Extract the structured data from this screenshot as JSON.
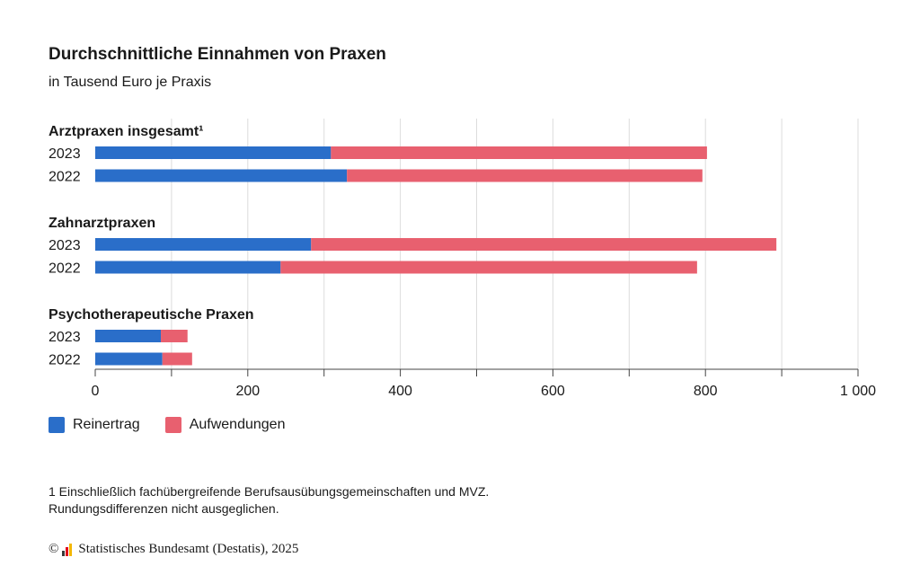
{
  "title": "Durchschnittliche Einnahmen von Praxen",
  "subtitle": "in Tausend Euro je Praxis",
  "colors": {
    "reinertrag": "#2a6ec9",
    "aufwendungen": "#e8606f",
    "grid": "#dcdcdc",
    "axis": "#444444"
  },
  "legend": [
    {
      "label": "Reinertrag",
      "color": "#2a6ec9"
    },
    {
      "label": "Aufwendungen",
      "color": "#e8606f"
    }
  ],
  "footnote": {
    "line1": "1 Einschließlich fachübergreifende Berufsausübungsgemeinschaften und MVZ.",
    "line2": "Rundungsdifferenzen nicht ausgeglichen."
  },
  "source": {
    "copyright": "©",
    "text": "Statistisches Bundesamt (Destatis), 2025"
  },
  "chart_data": {
    "type": "bar",
    "orientation": "horizontal",
    "stacked": true,
    "title": "Durchschnittliche Einnahmen von Praxen",
    "subtitle": "in Tausend Euro je Praxis",
    "xlim": [
      0,
      1000
    ],
    "xticks": [
      0,
      200,
      400,
      600,
      800,
      1000
    ],
    "xtick_labels": [
      "0",
      "200",
      "400",
      "600",
      "800",
      "1 000"
    ],
    "grid": true,
    "legend_position": "bottom-left",
    "series_names": [
      "Reinertrag",
      "Aufwendungen"
    ],
    "groups": [
      {
        "label": "Arztpraxen insgesamt¹",
        "rows": [
          {
            "year": "2023",
            "Reinertrag": 309,
            "Aufwendungen": 493
          },
          {
            "year": "2022",
            "Reinertrag": 330,
            "Aufwendungen": 466
          }
        ]
      },
      {
        "label": "Zahnarztpraxen",
        "rows": [
          {
            "year": "2023",
            "Reinertrag": 283,
            "Aufwendungen": 610
          },
          {
            "year": "2022",
            "Reinertrag": 243,
            "Aufwendungen": 546
          }
        ]
      },
      {
        "label": "Psychotherapeutische Praxen",
        "rows": [
          {
            "year": "2023",
            "Reinertrag": 86,
            "Aufwendungen": 35
          },
          {
            "year": "2022",
            "Reinertrag": 88,
            "Aufwendungen": 39
          }
        ]
      }
    ]
  }
}
